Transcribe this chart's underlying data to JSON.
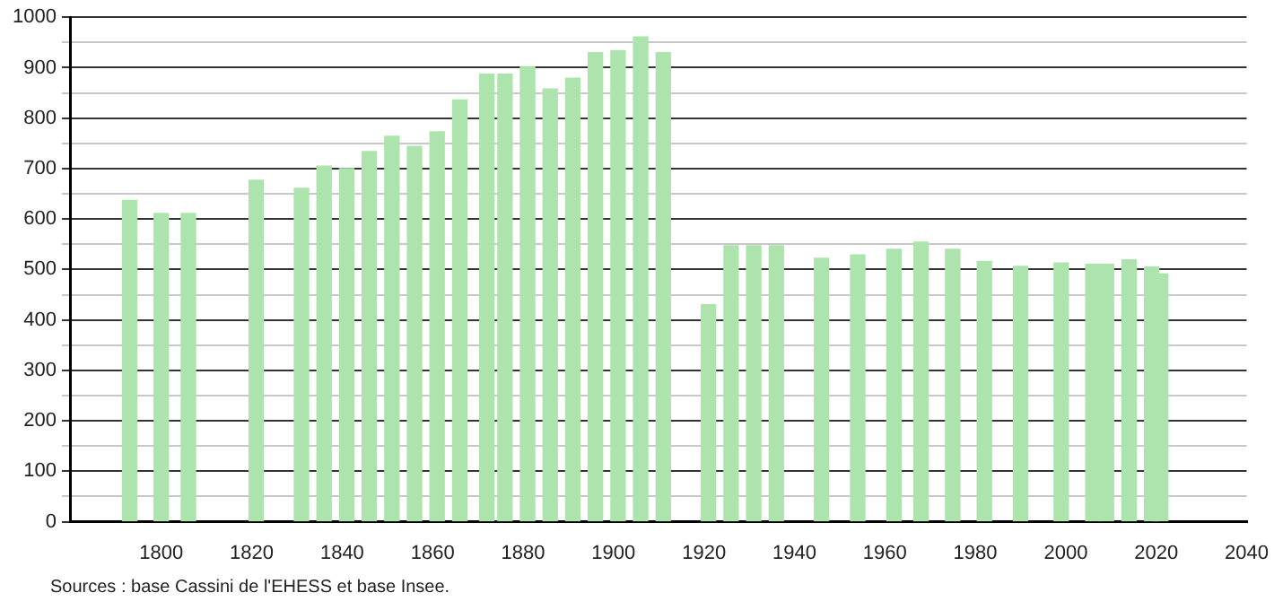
{
  "chart_data": {
    "type": "bar",
    "x": [
      1793,
      1800,
      1806,
      1821,
      1831,
      1836,
      1841,
      1846,
      1851,
      1856,
      1861,
      1866,
      1872,
      1876,
      1881,
      1886,
      1891,
      1896,
      1901,
      1906,
      1911,
      1921,
      1926,
      1931,
      1936,
      1946,
      1954,
      1962,
      1968,
      1975,
      1982,
      1990,
      1999,
      2006,
      2009,
      2014,
      2019,
      2021
    ],
    "values": [
      637,
      611,
      611,
      677,
      661,
      705,
      700,
      734,
      764,
      744,
      773,
      836,
      887,
      887,
      902,
      858,
      879,
      930,
      934,
      961,
      930,
      430,
      547,
      547,
      547,
      522,
      529,
      540,
      554,
      540,
      516,
      506,
      513,
      510,
      510,
      519,
      505,
      491
    ],
    "color": "#ade4ad",
    "xlim": [
      1780,
      2040
    ],
    "xticks": [
      1800,
      1820,
      1840,
      1860,
      1880,
      1900,
      1920,
      1940,
      1960,
      1980,
      2000,
      2020,
      2040
    ],
    "ylim": [
      0,
      1000
    ],
    "yticks": [
      0,
      {
        "value": 50,
        "label": null
      },
      100,
      {
        "value": 150,
        "label": null
      },
      200,
      {
        "value": 250,
        "label": null
      },
      300,
      {
        "value": 350,
        "label": null
      },
      400,
      {
        "value": 450,
        "label": null
      },
      500,
      {
        "value": 550,
        "label": null
      },
      600,
      {
        "value": 650,
        "label": null
      },
      700,
      {
        "value": 750,
        "label": null
      },
      800,
      {
        "value": 850,
        "label": null
      },
      900,
      {
        "value": 950,
        "label": null
      },
      1000
    ],
    "grid": "y",
    "annotations": [
      "Sources : base Cassini de l'EHESS et base Insee."
    ]
  }
}
